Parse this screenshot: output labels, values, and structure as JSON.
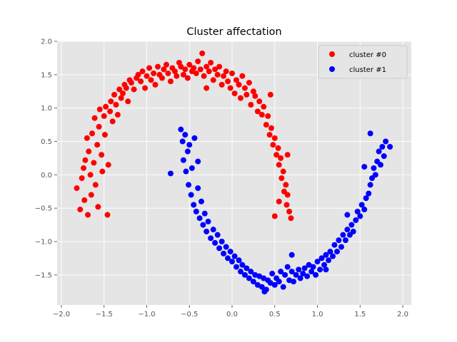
{
  "chart_data": {
    "type": "scatter",
    "title": "Cluster affectation",
    "xlabel": "",
    "ylabel": "",
    "xlim": [
      -2.05,
      2.1
    ],
    "ylim": [
      -1.95,
      2.0
    ],
    "grid": true,
    "legend_position": "top-right",
    "x_ticks": [
      "−2.0",
      "−1.5",
      "−1.0",
      "−0.5",
      "0.0",
      "0.5",
      "1.0",
      "1.5",
      "2.0"
    ],
    "x_tick_values": [
      -2.0,
      -1.5,
      -1.0,
      -0.5,
      0.0,
      0.5,
      1.0,
      1.5,
      2.0
    ],
    "y_ticks": [
      "−1.5",
      "−1.0",
      "−0.5",
      "0.0",
      "0.5",
      "1.0",
      "1.5",
      "2.0"
    ],
    "y_tick_values": [
      -1.5,
      -1.0,
      -0.5,
      0.0,
      0.5,
      1.0,
      1.5,
      2.0
    ],
    "series": [
      {
        "name": "cluster #0",
        "color": "#ff0000",
        "shape": "upper moon",
        "points": [
          [
            -1.82,
            -0.2
          ],
          [
            -1.78,
            -0.52
          ],
          [
            -1.76,
            -0.05
          ],
          [
            -1.74,
            0.1
          ],
          [
            -1.73,
            -0.38
          ],
          [
            -1.72,
            0.22
          ],
          [
            -1.7,
            0.55
          ],
          [
            -1.69,
            -0.6
          ],
          [
            -1.68,
            0.35
          ],
          [
            -1.66,
            0.0
          ],
          [
            -1.65,
            -0.3
          ],
          [
            -1.64,
            0.62
          ],
          [
            -1.62,
            0.18
          ],
          [
            -1.61,
            0.85
          ],
          [
            -1.6,
            -0.15
          ],
          [
            -1.58,
            0.45
          ],
          [
            -1.57,
            -0.48
          ],
          [
            -1.56,
            0.72
          ],
          [
            -1.55,
            0.98
          ],
          [
            -1.53,
            0.3
          ],
          [
            -1.52,
            0.05
          ],
          [
            -1.5,
            0.88
          ],
          [
            -1.49,
            0.6
          ],
          [
            -1.48,
            1.02
          ],
          [
            -1.46,
            -0.6
          ],
          [
            -1.45,
            0.15
          ],
          [
            -1.43,
            0.95
          ],
          [
            -1.42,
            1.1
          ],
          [
            -1.4,
            0.8
          ],
          [
            -1.38,
            1.2
          ],
          [
            -1.36,
            1.05
          ],
          [
            -1.34,
            0.9
          ],
          [
            -1.32,
            1.28
          ],
          [
            -1.3,
            1.15
          ],
          [
            -1.28,
            1.22
          ],
          [
            -1.26,
            1.35
          ],
          [
            -1.24,
            1.3
          ],
          [
            -1.22,
            1.1
          ],
          [
            -1.2,
            1.42
          ],
          [
            -1.18,
            1.38
          ],
          [
            -1.15,
            1.28
          ],
          [
            -1.12,
            1.45
          ],
          [
            -1.1,
            1.5
          ],
          [
            -1.07,
            1.4
          ],
          [
            -1.05,
            1.55
          ],
          [
            -1.02,
            1.3
          ],
          [
            -1.0,
            1.48
          ],
          [
            -0.97,
            1.6
          ],
          [
            -0.95,
            1.42
          ],
          [
            -0.92,
            1.52
          ],
          [
            -0.9,
            1.35
          ],
          [
            -0.87,
            1.62
          ],
          [
            -0.85,
            1.5
          ],
          [
            -0.82,
            1.45
          ],
          [
            -0.8,
            1.58
          ],
          [
            -0.77,
            1.65
          ],
          [
            -0.75,
            1.52
          ],
          [
            -0.72,
            1.4
          ],
          [
            -0.7,
            1.6
          ],
          [
            -0.67,
            1.55
          ],
          [
            -0.65,
            1.48
          ],
          [
            -0.62,
            1.68
          ],
          [
            -0.6,
            1.62
          ],
          [
            -0.57,
            1.5
          ],
          [
            -0.55,
            1.58
          ],
          [
            -0.52,
            1.45
          ],
          [
            -0.5,
            1.65
          ],
          [
            -0.47,
            1.55
          ],
          [
            -0.45,
            1.6
          ],
          [
            -0.42,
            1.52
          ],
          [
            -0.4,
            1.7
          ],
          [
            -0.37,
            1.58
          ],
          [
            -0.35,
            1.82
          ],
          [
            -0.33,
            1.48
          ],
          [
            -0.3,
            1.62
          ],
          [
            -0.27,
            1.55
          ],
          [
            -0.25,
            1.68
          ],
          [
            -0.22,
            1.42
          ],
          [
            -0.2,
            1.58
          ],
          [
            -0.17,
            1.5
          ],
          [
            -0.15,
            1.62
          ],
          [
            -0.12,
            1.35
          ],
          [
            -0.1,
            1.48
          ],
          [
            -0.07,
            1.55
          ],
          [
            -0.05,
            1.4
          ],
          [
            -0.02,
            1.3
          ],
          [
            0.0,
            1.52
          ],
          [
            0.03,
            1.22
          ],
          [
            0.05,
            1.42
          ],
          [
            0.08,
            1.35
          ],
          [
            0.1,
            1.15
          ],
          [
            0.12,
            1.48
          ],
          [
            0.15,
            1.3
          ],
          [
            0.17,
            1.2
          ],
          [
            0.2,
            1.38
          ],
          [
            0.22,
            1.05
          ],
          [
            0.25,
            1.25
          ],
          [
            0.27,
            1.18
          ],
          [
            0.3,
            0.95
          ],
          [
            0.32,
            1.1
          ],
          [
            0.35,
            0.9
          ],
          [
            0.37,
            1.02
          ],
          [
            0.4,
            0.75
          ],
          [
            0.42,
            0.88
          ],
          [
            0.44,
            0.6
          ],
          [
            0.46,
            0.7
          ],
          [
            0.48,
            0.45
          ],
          [
            0.5,
            0.55
          ],
          [
            0.52,
            0.3
          ],
          [
            0.54,
            0.4
          ],
          [
            0.55,
            0.15
          ],
          [
            0.57,
            0.25
          ],
          [
            0.58,
            -0.05
          ],
          [
            0.6,
            0.05
          ],
          [
            0.61,
            -0.25
          ],
          [
            0.63,
            -0.15
          ],
          [
            0.64,
            -0.45
          ],
          [
            0.65,
            -0.3
          ],
          [
            0.67,
            -0.55
          ],
          [
            0.69,
            -0.65
          ],
          [
            0.5,
            -0.62
          ],
          [
            0.55,
            -0.4
          ],
          [
            0.45,
            1.2
          ],
          [
            -0.3,
            1.3
          ],
          [
            0.65,
            0.3
          ]
        ]
      },
      {
        "name": "cluster #1",
        "color": "#0000ff",
        "shape": "lower moon",
        "points": [
          [
            -0.72,
            0.02
          ],
          [
            -0.6,
            0.68
          ],
          [
            -0.58,
            0.5
          ],
          [
            -0.57,
            0.22
          ],
          [
            -0.55,
            0.6
          ],
          [
            -0.54,
            0.05
          ],
          [
            -0.52,
            0.35
          ],
          [
            -0.51,
            -0.15
          ],
          [
            -0.5,
            0.45
          ],
          [
            -0.48,
            -0.3
          ],
          [
            -0.47,
            0.1
          ],
          [
            -0.45,
            -0.45
          ],
          [
            -0.44,
            0.55
          ],
          [
            -0.42,
            -0.55
          ],
          [
            -0.4,
            -0.2
          ],
          [
            -0.38,
            -0.65
          ],
          [
            -0.36,
            -0.4
          ],
          [
            -0.34,
            -0.75
          ],
          [
            -0.32,
            -0.58
          ],
          [
            -0.3,
            -0.85
          ],
          [
            -0.28,
            -0.7
          ],
          [
            -0.25,
            -0.95
          ],
          [
            -0.22,
            -0.82
          ],
          [
            -0.2,
            -1.02
          ],
          [
            -0.17,
            -0.9
          ],
          [
            -0.15,
            -1.1
          ],
          [
            -0.12,
            -1.0
          ],
          [
            -0.1,
            -1.18
          ],
          [
            -0.07,
            -1.08
          ],
          [
            -0.05,
            -1.25
          ],
          [
            -0.02,
            -1.15
          ],
          [
            0.0,
            -1.3
          ],
          [
            0.03,
            -1.22
          ],
          [
            0.05,
            -1.38
          ],
          [
            0.08,
            -1.28
          ],
          [
            0.1,
            -1.45
          ],
          [
            0.12,
            -1.35
          ],
          [
            0.15,
            -1.5
          ],
          [
            0.17,
            -1.4
          ],
          [
            0.2,
            -1.55
          ],
          [
            0.22,
            -1.45
          ],
          [
            0.25,
            -1.6
          ],
          [
            0.27,
            -1.5
          ],
          [
            0.3,
            -1.65
          ],
          [
            0.32,
            -1.52
          ],
          [
            0.35,
            -1.68
          ],
          [
            0.37,
            -1.55
          ],
          [
            0.4,
            -1.72
          ],
          [
            0.42,
            -1.58
          ],
          [
            0.45,
            -1.62
          ],
          [
            0.47,
            -1.48
          ],
          [
            0.5,
            -1.65
          ],
          [
            0.52,
            -1.55
          ],
          [
            0.55,
            -1.6
          ],
          [
            0.57,
            -1.45
          ],
          [
            0.6,
            -1.68
          ],
          [
            0.62,
            -1.5
          ],
          [
            0.65,
            -1.38
          ],
          [
            0.67,
            -1.58
          ],
          [
            0.7,
            -1.45
          ],
          [
            0.72,
            -1.6
          ],
          [
            0.75,
            -1.5
          ],
          [
            0.78,
            -1.42
          ],
          [
            0.8,
            -1.55
          ],
          [
            0.83,
            -1.48
          ],
          [
            0.85,
            -1.4
          ],
          [
            0.88,
            -1.52
          ],
          [
            0.9,
            -1.35
          ],
          [
            0.93,
            -1.45
          ],
          [
            0.95,
            -1.38
          ],
          [
            0.98,
            -1.5
          ],
          [
            1.0,
            -1.3
          ],
          [
            1.03,
            -1.42
          ],
          [
            1.05,
            -1.25
          ],
          [
            1.08,
            -1.35
          ],
          [
            1.1,
            -1.2
          ],
          [
            1.13,
            -1.28
          ],
          [
            1.15,
            -1.15
          ],
          [
            1.18,
            -1.22
          ],
          [
            1.2,
            -1.05
          ],
          [
            1.23,
            -1.15
          ],
          [
            1.25,
            -0.98
          ],
          [
            1.28,
            -1.08
          ],
          [
            1.3,
            -0.9
          ],
          [
            1.33,
            -0.98
          ],
          [
            1.35,
            -0.82
          ],
          [
            1.38,
            -0.9
          ],
          [
            1.4,
            -0.75
          ],
          [
            1.42,
            -0.85
          ],
          [
            1.45,
            -0.68
          ],
          [
            1.47,
            -0.55
          ],
          [
            1.5,
            -0.62
          ],
          [
            1.52,
            -0.45
          ],
          [
            1.55,
            -0.52
          ],
          [
            1.57,
            -0.35
          ],
          [
            1.6,
            -0.28
          ],
          [
            1.62,
            -0.15
          ],
          [
            1.64,
            -0.05
          ],
          [
            1.66,
            0.1
          ],
          [
            1.68,
            0.0
          ],
          [
            1.7,
            0.2
          ],
          [
            1.72,
            0.35
          ],
          [
            1.74,
            0.15
          ],
          [
            1.76,
            0.42
          ],
          [
            1.78,
            0.28
          ],
          [
            1.8,
            0.5
          ],
          [
            1.55,
            0.12
          ],
          [
            1.62,
            0.62
          ],
          [
            1.85,
            0.42
          ],
          [
            1.1,
            -1.42
          ],
          [
            0.7,
            -1.2
          ],
          [
            -0.4,
            0.2
          ],
          [
            1.35,
            -0.6
          ],
          [
            0.38,
            -1.75
          ]
        ]
      }
    ]
  },
  "colors": {
    "plot_background": "#e5e5e5",
    "grid": "#ffffff",
    "tick": "#555555",
    "legend_background": "#e5e5e5",
    "legend_border": "#cccccc"
  }
}
